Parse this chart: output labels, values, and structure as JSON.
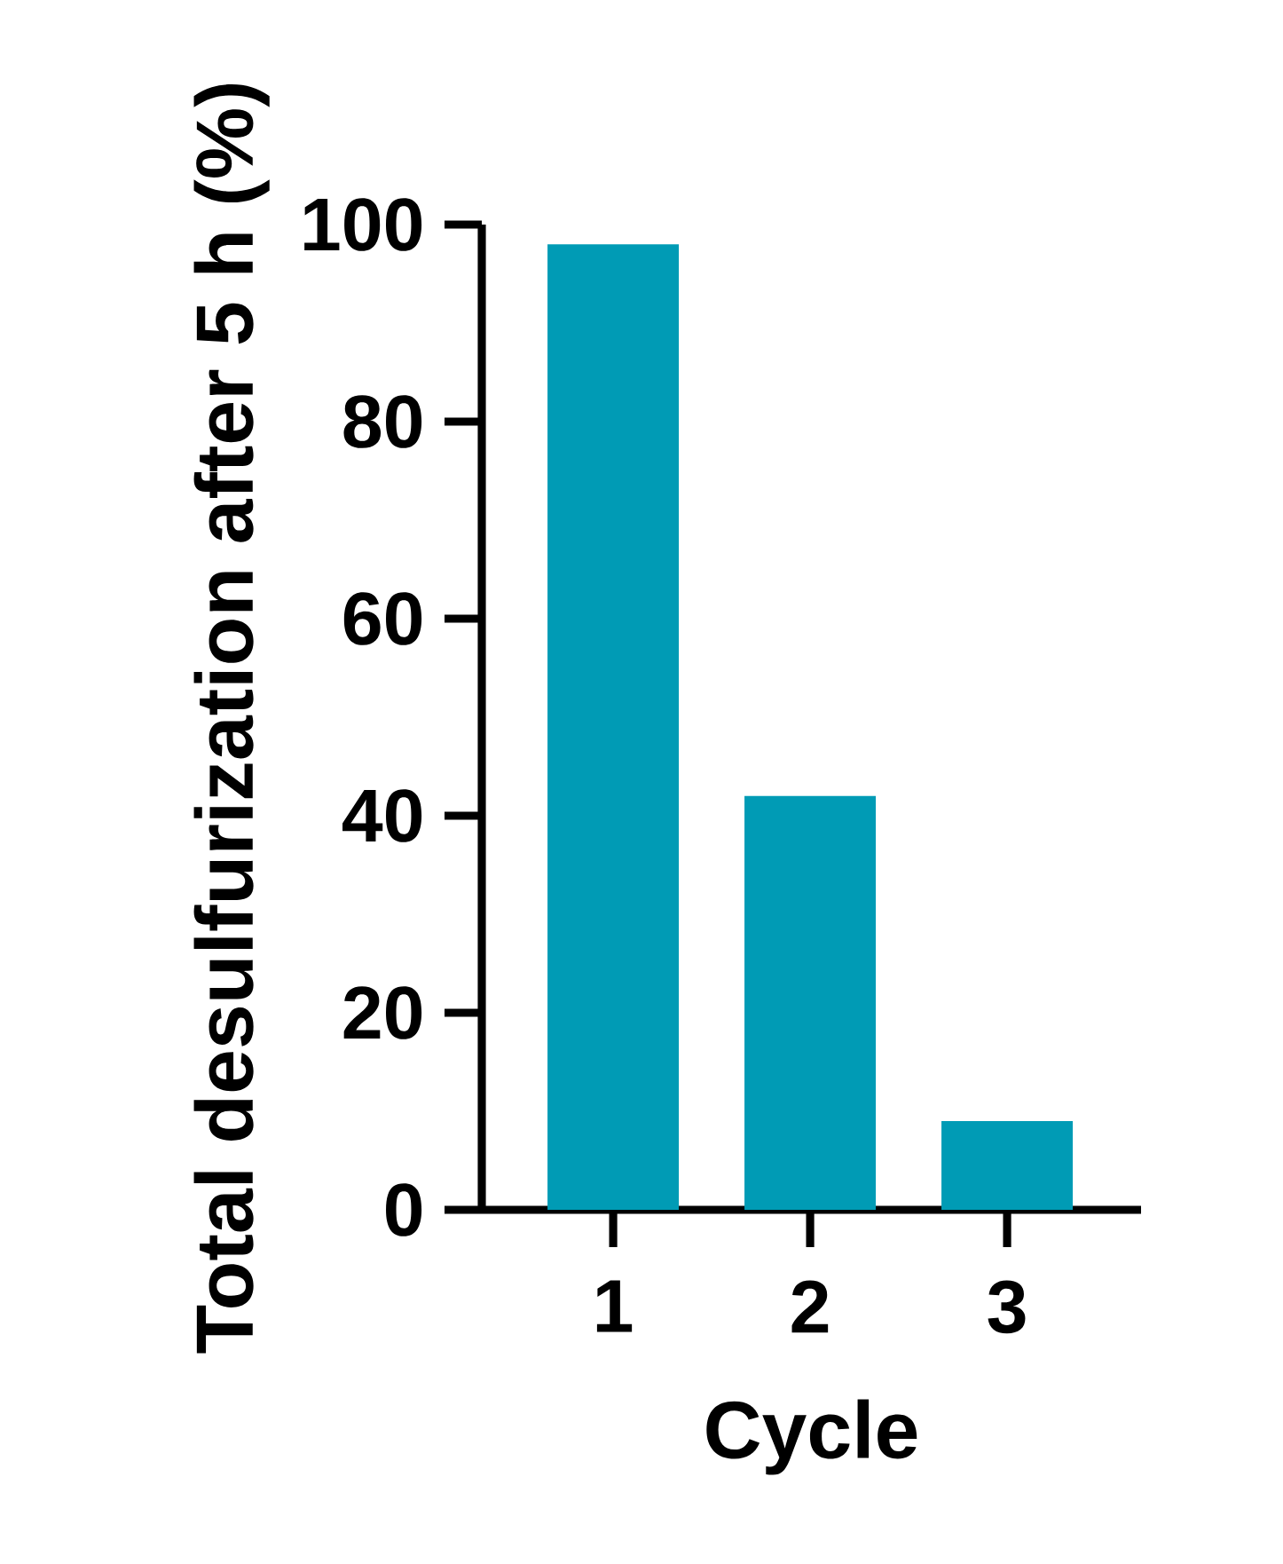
{
  "chart_data": {
    "type": "bar",
    "xlabel": "Cycle",
    "ylabel": "Total desulfurization after 5 h (%)",
    "categories": [
      "1",
      "2",
      "3"
    ],
    "values": [
      98,
      42,
      9
    ],
    "color": "#009bb5",
    "ylim": [
      0,
      100
    ],
    "yticks": [
      0,
      20,
      40,
      60,
      80,
      100
    ]
  }
}
